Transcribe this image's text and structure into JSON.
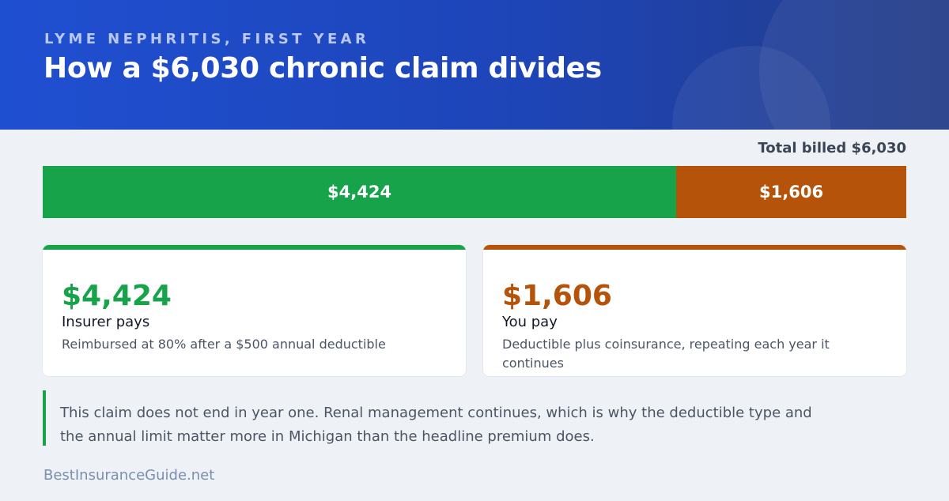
{
  "header": {
    "eyebrow": "LYME NEPHRITIS, FIRST YEAR",
    "title": "How a $6,030 chronic claim divides"
  },
  "total_label": "Total billed $6,030",
  "chart_data": {
    "type": "bar",
    "orientation": "horizontal-stacked",
    "total": 6030,
    "categories": [
      "Insurer pays",
      "You pay"
    ],
    "values": [
      4424,
      1606
    ],
    "value_labels": [
      "$4,424",
      "$1,606"
    ],
    "colors": [
      "#16a34a",
      "#b45309"
    ]
  },
  "cards": [
    {
      "amount": "$4,424",
      "label": "Insurer pays",
      "desc": "Reimbursed at 80% after a $500 annual deductible"
    },
    {
      "amount": "$1,606",
      "label": "You pay",
      "desc": "Deductible plus coinsurance, repeating each year it continues"
    }
  ],
  "note": "This claim does not end in year one. Renal management continues, which is why the deductible type and the annual limit matter more in Michigan than the headline premium does.",
  "footer": "BestInsuranceGuide.net"
}
